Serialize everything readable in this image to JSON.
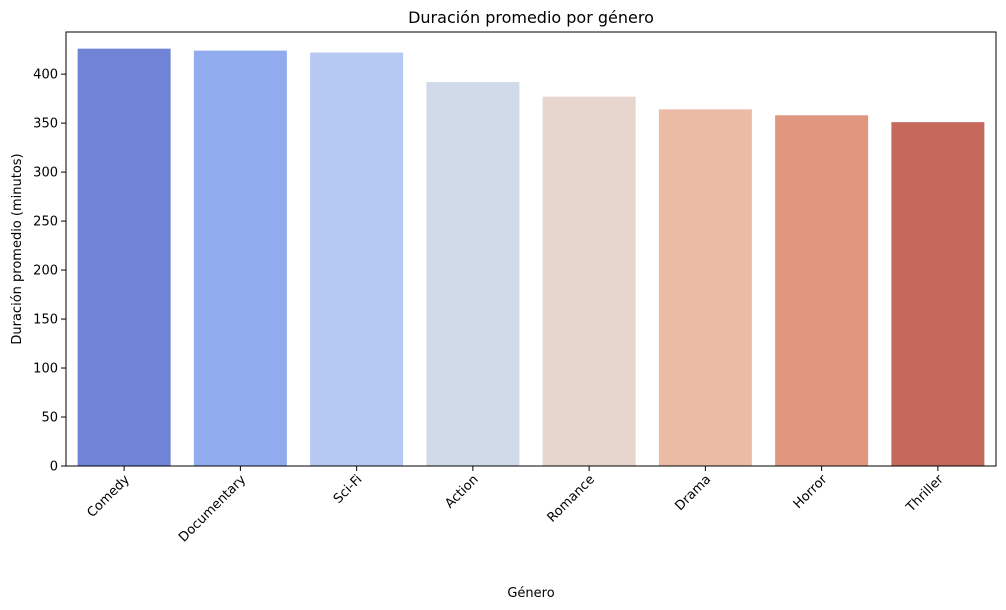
{
  "chart_data": {
    "type": "bar",
    "title": "Duración promedio por género",
    "xlabel": "Género",
    "ylabel": "Duración promedio (minutos)",
    "categories": [
      "Comedy",
      "Documentary",
      "Sci-Fi",
      "Action",
      "Romance",
      "Drama",
      "Horror",
      "Thriller"
    ],
    "values": [
      426,
      424,
      422,
      392,
      377,
      364,
      358,
      351
    ],
    "colors": [
      "#6F84D6",
      "#91ACEE",
      "#B5C9F2",
      "#D1DAE8",
      "#E6D6CE",
      "#ECBBA5",
      "#E19680",
      "#C6685C"
    ],
    "ylim": [
      0,
      443
    ],
    "yticks": [
      0,
      50,
      100,
      150,
      200,
      250,
      300,
      350,
      400
    ],
    "grid": false,
    "legend": "none",
    "xtick_rotation": 45
  }
}
